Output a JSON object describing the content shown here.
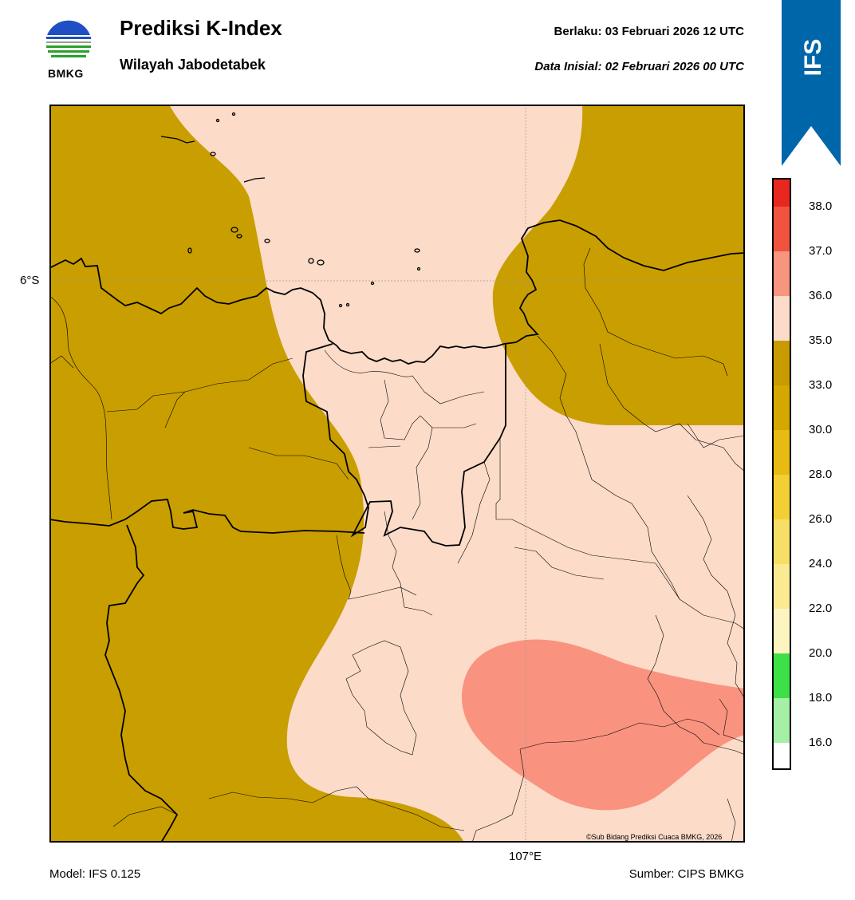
{
  "header": {
    "title": "Prediksi K-Index",
    "subtitle": "Wilayah Jabodetabek",
    "valid_time": "Berlaku:  03 Februari 2026 12 UTC",
    "init_time": "Data Inisial:  02 Februari 2026 00 UTC"
  },
  "logo": {
    "text": "BMKG"
  },
  "badge": {
    "text": "IFS",
    "color": "#0066aa"
  },
  "map": {
    "lat_label": "6°S",
    "lon_label": "107°E",
    "credit": "©Sub Bidang Prediksi Cuaca BMKG, 2026"
  },
  "footer": {
    "model": "Model: IFS 0.125",
    "source": "Sumber: CIPS BMKG"
  },
  "colorbar": {
    "labels": [
      "38.0",
      "37.0",
      "36.0",
      "35.0",
      "33.0",
      "30.0",
      "28.0",
      "26.0",
      "24.0",
      "22.0",
      "20.0",
      "18.0",
      "16.0"
    ],
    "colors": [
      "#e8281e",
      "#f0543e",
      "#f8957f",
      "#fcdcc8",
      "#c89c00",
      "#d4a800",
      "#e8bb14",
      "#f2d034",
      "#f7df66",
      "#fbea92",
      "#fdf5bf",
      "#3ee048",
      "#a4f0a4",
      "#ffffff"
    ]
  },
  "fill_colors": {
    "dark": "#c99e00",
    "light": "#fcdbc8",
    "salmon": "#f9937f"
  }
}
